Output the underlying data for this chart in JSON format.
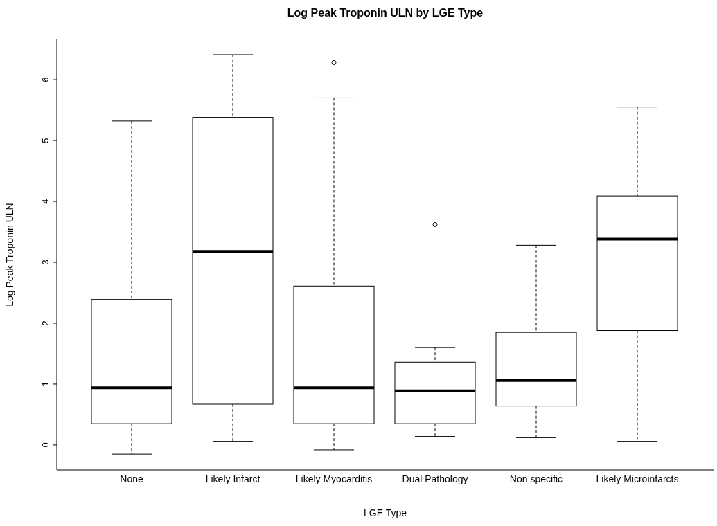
{
  "chart_data": {
    "type": "box",
    "title": "Log Peak Troponin ULN by LGE Type",
    "xlabel": "LGE Type",
    "ylabel": "Log Peak Troponin ULN",
    "categories": [
      "None",
      "Likely Infarct",
      "Likely Myocarditis",
      "Dual Pathology",
      "Non specific",
      "Likely Microinfarcts"
    ],
    "boxes": [
      {
        "low": -0.15,
        "q1": 0.35,
        "median": 0.94,
        "q3": 2.39,
        "high": 5.32
      },
      {
        "low": 0.06,
        "q1": 0.67,
        "median": 3.18,
        "q3": 5.38,
        "high": 6.41
      },
      {
        "low": -0.08,
        "q1": 0.35,
        "median": 0.94,
        "q3": 2.61,
        "high": 5.7,
        "outliers": [
          6.28
        ]
      },
      {
        "low": 0.14,
        "q1": 0.35,
        "median": 0.89,
        "q3": 1.36,
        "high": 1.6,
        "outliers": [
          3.62
        ]
      },
      {
        "low": 0.12,
        "q1": 0.64,
        "median": 1.06,
        "q3": 1.85,
        "high": 3.28
      },
      {
        "low": 0.06,
        "q1": 1.88,
        "median": 3.38,
        "q3": 4.09,
        "high": 5.55
      }
    ],
    "ylim": [
      -0.41,
      6.66
    ],
    "yticks": [
      0,
      1,
      2,
      3,
      4,
      5,
      6
    ]
  }
}
